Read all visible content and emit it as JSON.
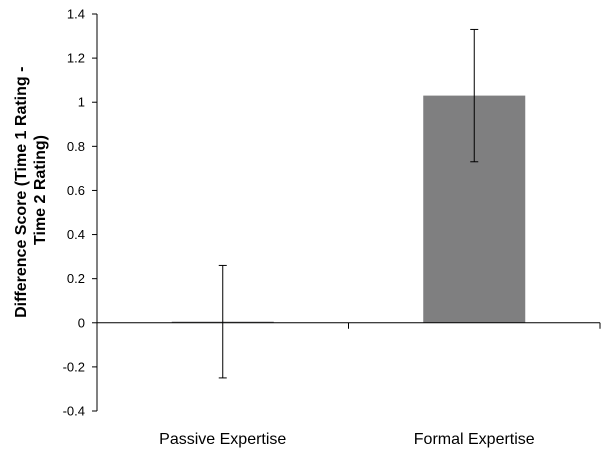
{
  "chart_data": {
    "type": "bar",
    "categories": [
      "Passive Expertise",
      "Formal Expertise"
    ],
    "values": [
      0.005,
      1.03
    ],
    "error": [
      0.255,
      0.3
    ],
    "ylabel_lines": [
      "Difference Score (Time 1 Rating -",
      "Time 2 Rating)"
    ],
    "ylim": [
      -0.4,
      1.4
    ],
    "yticks": [
      -0.4,
      -0.2,
      0,
      0.2,
      0.4,
      0.6,
      0.8,
      1,
      1.2,
      1.4
    ],
    "ytick_labels": [
      "-0.4",
      "-0.2",
      "0",
      "0.2",
      "0.4",
      "0.6",
      "0.8",
      "1",
      "1.2",
      "1.4"
    ],
    "grid": false,
    "legend": "none",
    "colors": {
      "bar": "#7f7f80",
      "axis": "#000000",
      "error": "#000000"
    }
  }
}
